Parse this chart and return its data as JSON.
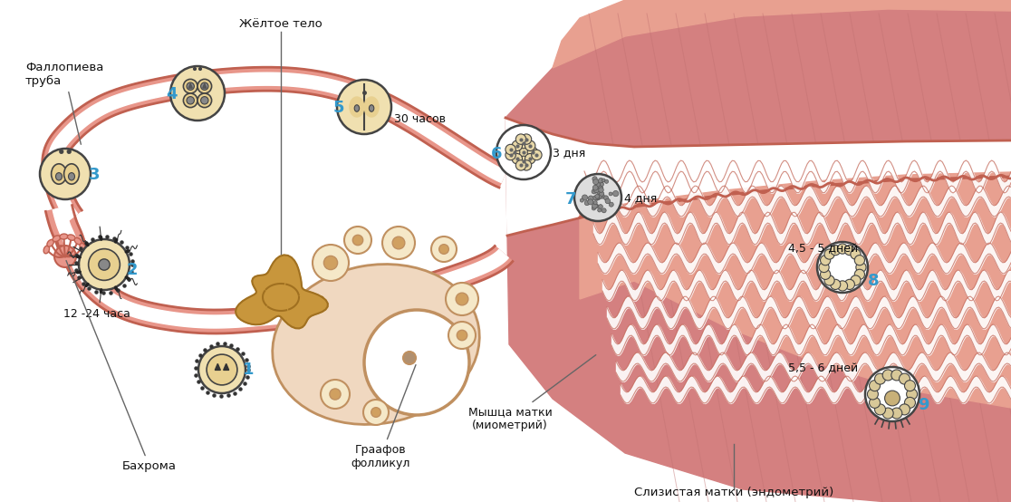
{
  "bg_color": "#ffffff",
  "labels": {
    "fallopian_tube": "Фаллопиева\nтруба",
    "yellow_body": "Жёлтое тело",
    "graaf_follicle": "Граафов\nфолликул",
    "muscle": "Мышца матки\n(миометрий)",
    "mucosa": "Слизистая матки (эндометрий)",
    "bakhroma": "Бахрома",
    "time_12_24": "12 -24 часа",
    "time_30h": "30 часов",
    "time_3d": "3 дня",
    "time_4d": "4 дня",
    "time_45_5d": "4,5 - 5 дней",
    "time_55_6d": "5,5 - 6 дней"
  },
  "stage_numbers": [
    "1",
    "2",
    "3",
    "4",
    "5",
    "6",
    "7",
    "8",
    "9"
  ],
  "stage_color": "#3399cc",
  "tube_color": "#e8968a",
  "tube_outline": "#c06050",
  "tube_lw": 2.0,
  "ovary_fill": "#f0d8c0",
  "ovary_outline": "#c09060",
  "uterus_muscle_color": "#d48080",
  "uterus_light": "#e8a090",
  "endometrium_color": "#e8a090",
  "cell_outline": "#444444",
  "cell_fill": "#f0e0b0",
  "cell_inner": "#e8d090",
  "white": "#ffffff",
  "line_color": "#666666",
  "sperm_color": "#222222",
  "nucleus_color": "#888888",
  "dark_morula_bg": "#cccccc",
  "corpus_luteum": "#c8963c",
  "corpus_dark": "#a07020"
}
